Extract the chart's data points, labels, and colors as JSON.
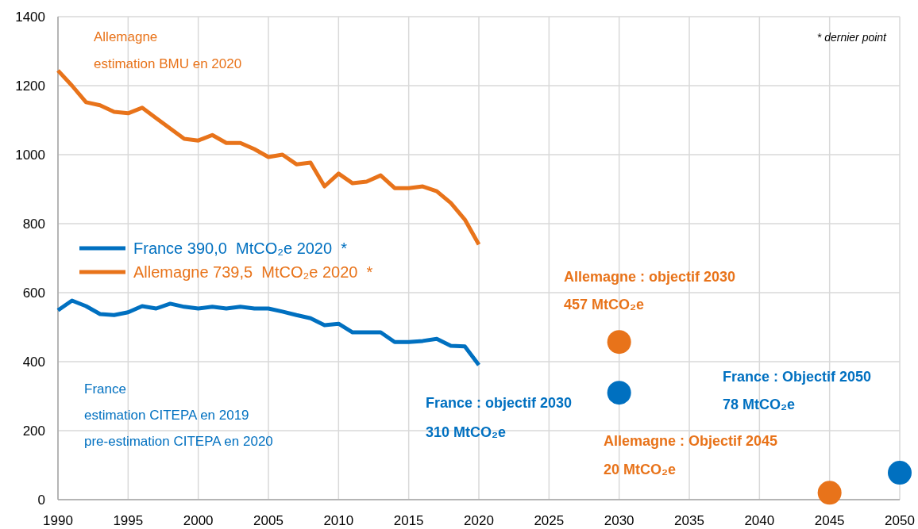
{
  "chart_data": {
    "type": "line",
    "x": [
      1990,
      1991,
      1992,
      1993,
      1994,
      1995,
      1996,
      1997,
      1998,
      1999,
      2000,
      2001,
      2002,
      2003,
      2004,
      2005,
      2006,
      2007,
      2008,
      2009,
      2010,
      2011,
      2012,
      2013,
      2014,
      2015,
      2016,
      2017,
      2018,
      2019,
      2020
    ],
    "series": [
      {
        "name": "France 390,0  MtCO₂e 2020  *",
        "color": "#0070c0",
        "values": [
          549,
          577,
          561,
          538,
          535,
          543,
          561,
          554,
          568,
          559,
          554,
          559,
          554,
          559,
          554,
          554,
          545,
          535,
          526,
          506,
          510,
          485,
          485,
          485,
          457,
          457,
          460,
          466,
          446,
          444,
          390
        ]
      },
      {
        "name": "Allemagne 739,5  MtCO₂e 2020  *",
        "color": "#e8731a",
        "values": [
          1244,
          1200,
          1152,
          1143,
          1124,
          1120,
          1136,
          1106,
          1076,
          1046,
          1041,
          1057,
          1034,
          1034,
          1016,
          993,
          1000,
          972,
          977,
          908,
          945,
          917,
          922,
          940,
          903,
          903,
          908,
          894,
          860,
          812,
          739.5
        ]
      },
      {
        "type": "scatter",
        "color": "#0070c0",
        "x": [
          2030,
          2050
        ],
        "values": [
          310,
          78
        ]
      },
      {
        "type": "scatter",
        "color": "#e8731a",
        "x": [
          2030,
          2045
        ],
        "values": [
          457,
          20
        ]
      }
    ],
    "xlim": [
      1990,
      2050
    ],
    "xticks": [
      1990,
      1995,
      2000,
      2005,
      2010,
      2015,
      2020,
      2025,
      2030,
      2035,
      2040,
      2045,
      2050
    ],
    "ylim": [
      0,
      1400
    ],
    "yticks": [
      0,
      200,
      400,
      600,
      800,
      1000,
      1200,
      1400
    ],
    "grid": true,
    "legend": "left",
    "line_style": "solid",
    "annotations": [
      "Allemagne\nestimation BMU en 2020",
      "France\nestimation CITEPA en 2019\npre-estimation CITEPA en 2020",
      "* dernier point",
      "Allemagne : objectif 2030\n457 MtCO₂e",
      "France : objectif 2030\n310 MtCO₂e",
      "France : Objectif 2050\n78 MtCO₂e",
      "Allemagne : Objectif 2045\n20 MtCO₂e"
    ]
  }
}
